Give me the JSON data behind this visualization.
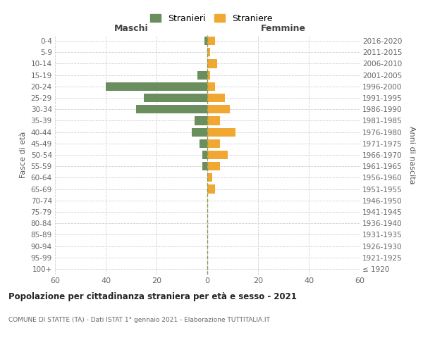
{
  "age_groups": [
    "100+",
    "95-99",
    "90-94",
    "85-89",
    "80-84",
    "75-79",
    "70-74",
    "65-69",
    "60-64",
    "55-59",
    "50-54",
    "45-49",
    "40-44",
    "35-39",
    "30-34",
    "25-29",
    "20-24",
    "15-19",
    "10-14",
    "5-9",
    "0-4"
  ],
  "birth_years": [
    "≤ 1920",
    "1921-1925",
    "1926-1930",
    "1931-1935",
    "1936-1940",
    "1941-1945",
    "1946-1950",
    "1951-1955",
    "1956-1960",
    "1961-1965",
    "1966-1970",
    "1971-1975",
    "1976-1980",
    "1981-1985",
    "1986-1990",
    "1991-1995",
    "1996-2000",
    "2001-2005",
    "2006-2010",
    "2011-2015",
    "2016-2020"
  ],
  "maschi": [
    0,
    0,
    0,
    0,
    0,
    0,
    0,
    0,
    0,
    2,
    2,
    3,
    6,
    5,
    28,
    25,
    40,
    4,
    0,
    0,
    1
  ],
  "femmine": [
    0,
    0,
    0,
    0,
    0,
    0,
    0,
    3,
    2,
    5,
    8,
    5,
    11,
    5,
    9,
    7,
    3,
    1,
    4,
    1,
    3
  ],
  "color_maschi": "#6b8e5e",
  "color_femmine": "#f0a832",
  "color_dashed_line": "#8b9a5a",
  "xlim": 60,
  "title": "Popolazione per cittadinanza straniera per età e sesso - 2021",
  "subtitle": "COMUNE DI STATTE (TA) - Dati ISTAT 1° gennaio 2021 - Elaborazione TUTTITALIA.IT",
  "ylabel_left": "Fasce di età",
  "ylabel_right": "Anni di nascita",
  "header_left": "Maschi",
  "header_right": "Femmine",
  "legend_stranieri": "Stranieri",
  "legend_straniere": "Straniere",
  "background_color": "#ffffff",
  "grid_color": "#d0d0d0"
}
